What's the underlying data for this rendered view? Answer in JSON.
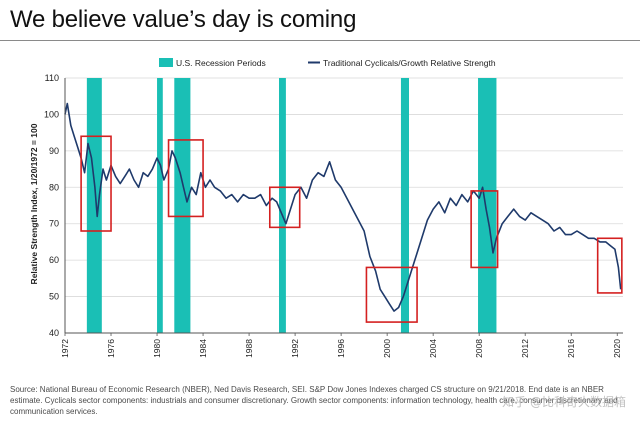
{
  "title": "We believe value’s day is coming",
  "source_note": "Source: National Bureau of Economic Research (NBER), Ned Davis Research, SEI. S&P Dow Jones Indexes charged CS structure on 9/21/2018. End date is an NBER estimate. Cyclicals sector components: industrials and consumer discretionary. Growth sector components: information technology, health care, consumer discretionary and communication services.",
  "watermark": "知乎 @比科奇大数据箱",
  "colors": {
    "line": "#1f3a6b",
    "recession": "#1abfb5",
    "highlight_box": "#d42020",
    "grid": "#d9d9d9"
  },
  "chart_data": {
    "type": "line",
    "title": "",
    "xlabel": "",
    "ylabel": "Relative Strength Index, 1/20/1972 = 100",
    "xlim": [
      1972,
      2020.5
    ],
    "ylim": [
      40,
      110
    ],
    "y_ticks": [
      40,
      50,
      60,
      70,
      80,
      90,
      100,
      110
    ],
    "x_ticks": [
      1972,
      1976,
      1980,
      1984,
      1988,
      1992,
      1996,
      2000,
      2004,
      2008,
      2012,
      2016,
      2020
    ],
    "grid": "horizontal",
    "legend_position": "top",
    "legend": [
      "U.S. Recession Periods",
      "Traditional Cyclicals/Growth Relative Strength"
    ],
    "series": [
      {
        "name": "Traditional Cyclicals/Growth Relative Strength",
        "x": [
          1972.0,
          1972.2,
          1972.5,
          1972.8,
          1973.1,
          1973.4,
          1973.7,
          1974.0,
          1974.3,
          1974.6,
          1974.8,
          1975.0,
          1975.3,
          1975.6,
          1976.0,
          1976.4,
          1976.8,
          1977.2,
          1977.6,
          1978.0,
          1978.4,
          1978.8,
          1979.2,
          1979.6,
          1980.0,
          1980.3,
          1980.6,
          1981.0,
          1981.3,
          1981.6,
          1982.0,
          1982.3,
          1982.6,
          1983.0,
          1983.4,
          1983.8,
          1984.2,
          1984.6,
          1985.0,
          1985.5,
          1986.0,
          1986.5,
          1987.0,
          1987.5,
          1988.0,
          1988.5,
          1989.0,
          1989.5,
          1990.0,
          1990.4,
          1990.8,
          1991.2,
          1991.6,
          1992.0,
          1992.5,
          1993.0,
          1993.5,
          1994.0,
          1994.5,
          1995.0,
          1995.5,
          1996.0,
          1996.5,
          1997.0,
          1997.5,
          1998.0,
          1998.5,
          1999.0,
          1999.4,
          1999.8,
          2000.2,
          2000.6,
          2001.0,
          2001.4,
          2001.8,
          2002.2,
          2002.6,
          2003.0,
          2003.5,
          2004.0,
          2004.5,
          2005.0,
          2005.5,
          2006.0,
          2006.5,
          2007.0,
          2007.5,
          2008.0,
          2008.3,
          2008.6,
          2008.9,
          2009.2,
          2009.5,
          2010.0,
          2010.5,
          2011.0,
          2011.5,
          2012.0,
          2012.5,
          2013.0,
          2013.5,
          2014.0,
          2014.5,
          2015.0,
          2015.5,
          2016.0,
          2016.5,
          2017.0,
          2017.5,
          2018.0,
          2018.5,
          2019.0,
          2019.4,
          2019.8,
          2020.1,
          2020.3
        ],
        "values": [
          100,
          103,
          97,
          94,
          91,
          88,
          84,
          92,
          88,
          80,
          72,
          78,
          85,
          82,
          86,
          83,
          81,
          83,
          85,
          82,
          80,
          84,
          83,
          85,
          88,
          86,
          82,
          85,
          90,
          88,
          84,
          80,
          76,
          80,
          78,
          84,
          80,
          82,
          80,
          79,
          77,
          78,
          76,
          78,
          77,
          77,
          78,
          75,
          77,
          76,
          73,
          70,
          74,
          78,
          80,
          77,
          82,
          84,
          83,
          87,
          82,
          80,
          77,
          74,
          71,
          68,
          61,
          57,
          52,
          50,
          48,
          46,
          47,
          50,
          54,
          58,
          62,
          66,
          71,
          74,
          76,
          73,
          77,
          75,
          78,
          76,
          79,
          77,
          80,
          74,
          69,
          62,
          66,
          70,
          72,
          74,
          72,
          71,
          73,
          72,
          71,
          70,
          68,
          69,
          67,
          67,
          68,
          67,
          66,
          66,
          65,
          65,
          64,
          63,
          58,
          52
        ]
      }
    ],
    "recession_periods": [
      [
        1973.9,
        1975.2
      ],
      [
        1980.0,
        1980.5
      ],
      [
        1981.5,
        1982.9
      ],
      [
        1990.6,
        1991.2
      ],
      [
        2001.2,
        2001.9
      ],
      [
        2007.9,
        2009.5
      ]
    ],
    "highlight_boxes": [
      {
        "x": [
          1973.4,
          1976.0
        ],
        "y": [
          68,
          94
        ]
      },
      {
        "x": [
          1981.0,
          1984.0
        ],
        "y": [
          72,
          93
        ]
      },
      {
        "x": [
          1989.8,
          1992.4
        ],
        "y": [
          69,
          80
        ]
      },
      {
        "x": [
          1998.2,
          2002.6
        ],
        "y": [
          43,
          58
        ]
      },
      {
        "x": [
          2007.3,
          2009.6
        ],
        "y": [
          58,
          79
        ]
      },
      {
        "x": [
          2018.3,
          2020.4
        ],
        "y": [
          51,
          66
        ]
      }
    ]
  }
}
